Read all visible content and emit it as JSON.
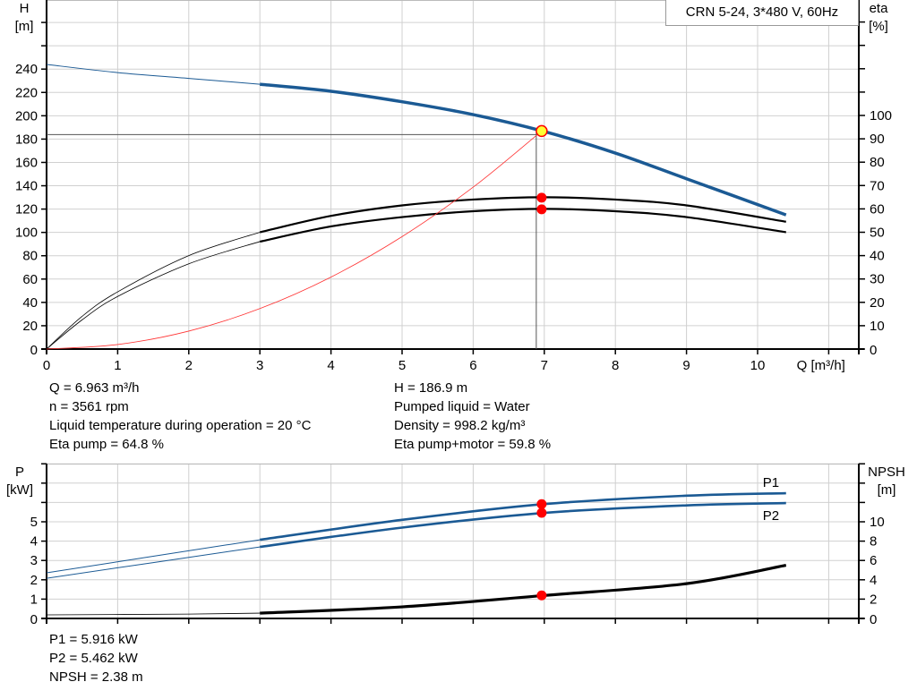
{
  "legend": "CRN 5-24, 3*480 V, 60Hz",
  "colors": {
    "head": "#1b5a94",
    "power": "#1b5a94",
    "eta": "#000000",
    "npsh": "#000000",
    "system": "#ff3333",
    "marker": "#ff0000",
    "duty_marker": "#ffff33",
    "grid": "#d0d0d0"
  },
  "chart_data": [
    {
      "type": "line",
      "title": "",
      "xlabel": "Q [m³/h]",
      "x_ticks": [
        "0",
        "1",
        "2",
        "3",
        "4",
        "5",
        "6",
        "7",
        "8",
        "9",
        "10"
      ],
      "xlim": [
        0,
        11.45
      ],
      "y_left": {
        "label": "H",
        "unit": "[m]",
        "ylim": [
          0,
          300
        ],
        "ticks": [
          "0",
          "20",
          "40",
          "60",
          "80",
          "100",
          "120",
          "140",
          "160",
          "180",
          "200",
          "220",
          "240"
        ]
      },
      "y_right": {
        "label": "eta",
        "unit": "[%]",
        "ylim": [
          0,
          115
        ],
        "ticks": [
          "0",
          "10",
          "20",
          "30",
          "40",
          "50",
          "60",
          "70",
          "80",
          "90",
          "100"
        ]
      },
      "grid": true,
      "series": [
        {
          "id": "head",
          "axis": "left",
          "style": "head",
          "thick_from": 3,
          "x": [
            0,
            1,
            2,
            3,
            4,
            5,
            6,
            7,
            8,
            9,
            10.4
          ],
          "y": [
            244,
            237,
            232,
            227,
            221,
            212,
            201,
            186.5,
            168,
            146,
            115
          ]
        },
        {
          "id": "eta_pump",
          "axis": "right",
          "style": "eta",
          "thick_from": 3,
          "x": [
            0,
            0.5,
            1,
            2,
            3,
            4,
            5,
            6,
            7,
            8,
            9,
            10.4
          ],
          "y": [
            0,
            14,
            24.5,
            40,
            50,
            57,
            61.5,
            64,
            65,
            64,
            61.5,
            54.5
          ]
        },
        {
          "id": "eta_pump_motor",
          "axis": "right",
          "style": "eta",
          "thick_from": 3,
          "x": [
            0,
            0.5,
            1,
            2,
            3,
            4,
            5,
            6,
            7,
            8,
            9,
            10.4
          ],
          "y": [
            0,
            12.5,
            22.5,
            36.5,
            46,
            52.5,
            56.5,
            59,
            60,
            59,
            56.5,
            50
          ]
        },
        {
          "id": "system",
          "axis": "left",
          "style": "system",
          "thick_from": null,
          "x": [
            0,
            1,
            2,
            3,
            4,
            5,
            6,
            6.963
          ],
          "y": [
            0,
            3.9,
            15.4,
            34.7,
            61.7,
            96.4,
            138.8,
            186.9
          ]
        }
      ],
      "duty_point": {
        "q": 6.963,
        "h": 186.9,
        "eta_pump": 64.8,
        "eta_pump_motor": 59.8
      }
    },
    {
      "type": "line",
      "title": "",
      "xlabel": "",
      "xlim": [
        0,
        11.45
      ],
      "y_left": {
        "label": "P",
        "unit": "[kW]",
        "ylim": [
          0,
          8
        ],
        "ticks": [
          "0",
          "1",
          "2",
          "3",
          "4",
          "5"
        ]
      },
      "y_right": {
        "label": "NPSH",
        "unit": "[m]",
        "ylim": [
          0,
          16
        ],
        "ticks": [
          "0",
          "2",
          "4",
          "6",
          "8",
          "10"
        ]
      },
      "grid": true,
      "series": [
        {
          "id": "P1",
          "name": "P1",
          "axis": "left",
          "style": "power",
          "thick_from": 3,
          "x": [
            0,
            3,
            5,
            7,
            9,
            10.4
          ],
          "y": [
            2.36,
            4.07,
            5.1,
            5.916,
            6.35,
            6.48
          ]
        },
        {
          "id": "P2",
          "name": "P2",
          "axis": "left",
          "style": "power",
          "thick_from": 3,
          "x": [
            0,
            3,
            5,
            7,
            9,
            10.4
          ],
          "y": [
            2.08,
            3.7,
            4.7,
            5.462,
            5.85,
            5.97
          ]
        },
        {
          "id": "npsh",
          "axis": "right",
          "style": "npsh",
          "thick_from": 3,
          "x": [
            0,
            2,
            3,
            5,
            7,
            9,
            10.4
          ],
          "y": [
            0.37,
            0.45,
            0.55,
            1.2,
            2.38,
            3.6,
            5.5
          ]
        }
      ],
      "duty_point": {
        "q": 6.963,
        "p1": 5.916,
        "p2": 5.462,
        "npsh": 2.38
      }
    }
  ],
  "info": {
    "col1": [
      "Q = 6.963 m³/h",
      "n = 3561 rpm",
      "Liquid temperature during operation = 20 °C",
      "Eta pump = 64.8 %"
    ],
    "col2": [
      "H = 186.9 m",
      "Pumped liquid = Water",
      "Density = 998.2 kg/m³",
      "Eta pump+motor = 59.8 %"
    ],
    "bottom": [
      "P1 = 5.916 kW",
      "P2 = 5.462 kW",
      "NPSH = 2.38 m"
    ]
  }
}
